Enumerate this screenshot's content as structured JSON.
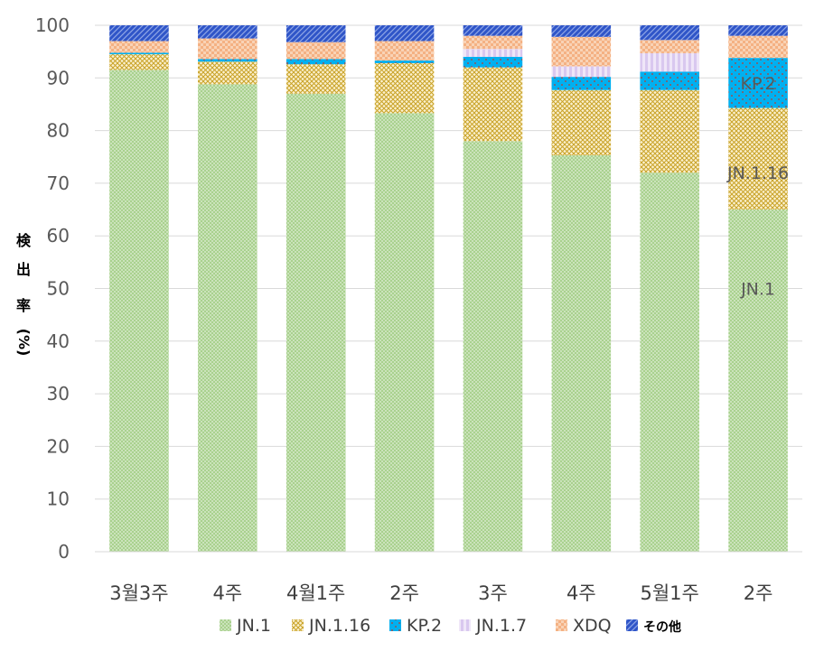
{
  "chart_data": {
    "type": "bar",
    "stacked": true,
    "categories": [
      "3월3주",
      "4주",
      "4월1주",
      "2주",
      "3주",
      "4주",
      "5월1주",
      "2주"
    ],
    "ylabel": [
      "検",
      "出",
      "率",
      "(%)"
    ],
    "ylim": [
      0,
      100
    ],
    "yticks": [
      0,
      10,
      20,
      30,
      40,
      50,
      60,
      70,
      80,
      90,
      100
    ],
    "grid": true,
    "legend": "bottom",
    "series": [
      {
        "name": "JN.1",
        "color": "#a9d18e",
        "pattern": "dots",
        "values": [
          91.5,
          88.8,
          87.0,
          83.3,
          78.0,
          75.3,
          72.0,
          65.0
        ]
      },
      {
        "name": "JN.1.16",
        "color": "#c9a227",
        "pattern": "lattice",
        "values": [
          3.0,
          4.3,
          5.6,
          9.5,
          14.0,
          12.4,
          15.7,
          19.3
        ]
      },
      {
        "name": "KP.2",
        "color": "#00b0f0",
        "pattern": "sparse-dots",
        "values": [
          0.3,
          0.5,
          1.0,
          0.5,
          2.0,
          2.5,
          3.5,
          9.5
        ]
      },
      {
        "name": "JN.1.7",
        "color": "#d9c8ef",
        "pattern": "stripes",
        "values": [
          0.0,
          0.0,
          0.0,
          0.0,
          1.5,
          2.0,
          3.5,
          0.0
        ]
      },
      {
        "name": "XDQ",
        "color": "#f4b183",
        "pattern": "checker",
        "values": [
          2.2,
          3.9,
          3.2,
          3.7,
          2.5,
          5.6,
          2.5,
          4.2
        ]
      },
      {
        "name": "その他",
        "color": "#2f55c8",
        "pattern": "diagonal",
        "values": [
          3.0,
          2.5,
          3.2,
          3.0,
          2.0,
          2.2,
          2.8,
          2.0
        ]
      }
    ],
    "annotations": [
      {
        "text": "KP.2",
        "category_index": 7,
        "y": 89
      },
      {
        "text": "JN.1.16",
        "category_index": 7,
        "y": 72
      },
      {
        "text": "JN.1",
        "category_index": 7,
        "y": 50
      }
    ]
  }
}
